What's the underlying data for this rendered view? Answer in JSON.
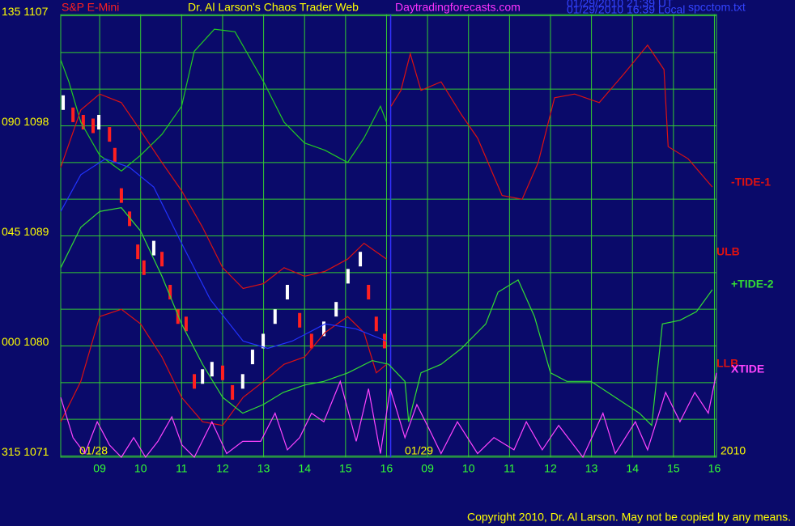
{
  "chart_data": {
    "type": "line",
    "title": "Dr. Al Larson's Chaos Trader Web",
    "subtitle": "S&P E-Mini",
    "site": "Daytradingforecasts.com",
    "timestamps": [
      "01/29/2010 21:39 UT",
      "01/29/2010 16:39 Local"
    ],
    "file": "spcctom.txt",
    "copyright": "Copyright 2010, Dr. Al Larson. May not be copied by any means.",
    "date_labels": [
      "01/28",
      "01/29",
      "2010"
    ],
    "xlim": [
      0.05,
      16.05
    ],
    "xticks": [
      {
        "value": 1,
        "label": "09"
      },
      {
        "value": 2,
        "label": "10"
      },
      {
        "value": 3,
        "label": "11"
      },
      {
        "value": 4,
        "label": "12"
      },
      {
        "value": 5,
        "label": "13"
      },
      {
        "value": 6,
        "label": "14"
      },
      {
        "value": 7,
        "label": "15"
      },
      {
        "value": 8,
        "label": "16"
      },
      {
        "value": 9,
        "label": "09"
      },
      {
        "value": 10,
        "label": "10"
      },
      {
        "value": 11,
        "label": "11"
      },
      {
        "value": 12,
        "label": "12"
      },
      {
        "value": 13,
        "label": "13"
      },
      {
        "value": 14,
        "label": "14"
      },
      {
        "value": 15,
        "label": "15"
      },
      {
        "value": 16,
        "label": "16"
      }
    ],
    "ylim": [
      1070.9,
      1107.1
    ],
    "yticks": [
      {
        "value": 1107,
        "label": "135 1107"
      },
      {
        "value": 1098,
        "label": "090 1098"
      },
      {
        "value": 1089,
        "label": "045 1089"
      },
      {
        "value": 1080,
        "label": "000 1080"
      },
      {
        "value": 1071,
        "label": "315 1071"
      }
    ],
    "ygrid": [
      1074,
      1077,
      1083,
      1086,
      1092,
      1095,
      1101,
      1104
    ],
    "grid": true,
    "grid_color": "#33cc33",
    "session_break": 8.1,
    "session_break_color": "#3333ff",
    "series": [
      {
        "style": "bars",
        "color": "#ffffff",
        "down_color": "#ff2020",
        "x": [
          0.11,
          0.35,
          0.6,
          0.84,
          0.98,
          1.24,
          1.37,
          1.53,
          1.73,
          1.93,
          2.08,
          2.32,
          2.52,
          2.72,
          2.91,
          3.11,
          3.31,
          3.51,
          3.74,
          4.0,
          4.24,
          4.49,
          4.73,
          4.99,
          5.28,
          5.58,
          5.88,
          6.17,
          6.47,
          6.77,
          7.06,
          7.36,
          7.56,
          7.75,
          7.95
        ],
        "values": [
          1099.9,
          1098.9,
          1098.3,
          1098.0,
          1098.3,
          1097.3,
          1095.6,
          1092.3,
          1090.4,
          1087.7,
          1086.4,
          1088.0,
          1087.1,
          1084.4,
          1082.4,
          1081.8,
          1077.1,
          1077.5,
          1078.1,
          1077.8,
          1076.2,
          1077.1,
          1079.1,
          1080.4,
          1082.4,
          1084.4,
          1082.1,
          1080.4,
          1081.4,
          1083.0,
          1085.7,
          1087.1,
          1084.4,
          1081.8,
          1080.4
        ]
      },
      {
        "color": "#22cc22",
        "x": [
          0.05,
          0.25,
          0.54,
          1.0,
          1.53,
          2.0,
          2.52,
          3.0,
          3.31,
          3.8,
          4.3,
          5.0,
          5.5,
          6.0,
          6.5,
          7.05,
          7.45,
          7.85,
          8.0
        ],
        "values": [
          1103.4,
          1101.6,
          1098.3,
          1095.6,
          1094.3,
          1095.6,
          1097.3,
          1099.6,
          1104.1,
          1105.9,
          1105.7,
          1101.6,
          1098.3,
          1096.6,
          1096.0,
          1095.0,
          1097.0,
          1099.6,
          1098.3
        ]
      },
      {
        "name": "ULB",
        "color": "#dd1111",
        "x": [
          0.05,
          0.54,
          1.0,
          1.53,
          2.0,
          2.52,
          3.0,
          3.51,
          4.0,
          4.5,
          5.0,
          5.5,
          6.0,
          6.5,
          7.05,
          7.45,
          8.0
        ],
        "values": [
          1094.6,
          1099.3,
          1100.6,
          1099.9,
          1097.6,
          1095.0,
          1092.7,
          1089.7,
          1086.4,
          1084.7,
          1085.1,
          1086.4,
          1085.7,
          1086.1,
          1087.1,
          1088.4,
          1087.1
        ]
      },
      {
        "name": "LLB",
        "color": "#dd1111",
        "x": [
          0.05,
          0.54,
          1.0,
          1.53,
          2.0,
          2.52,
          3.0,
          3.51,
          4.0,
          4.5,
          5.0,
          5.5,
          6.0,
          6.5,
          7.05,
          7.45,
          7.75,
          8.0
        ],
        "values": [
          1073.8,
          1077.1,
          1082.4,
          1083.0,
          1081.8,
          1079.1,
          1075.8,
          1073.8,
          1073.5,
          1075.8,
          1077.1,
          1078.5,
          1079.1,
          1081.1,
          1082.4,
          1081.1,
          1077.8,
          1078.5
        ]
      },
      {
        "color": "#2233ff",
        "x": [
          0.05,
          0.54,
          1.14,
          1.73,
          2.32,
          3.0,
          3.7,
          4.5,
          5.1,
          5.7,
          6.5,
          7.25,
          8.0
        ],
        "values": [
          1091.0,
          1094.0,
          1095.3,
          1094.6,
          1093.0,
          1088.4,
          1083.8,
          1080.4,
          1079.8,
          1080.4,
          1081.8,
          1081.4,
          1080.4
        ]
      },
      {
        "name": "-TIDE-1",
        "color": "#dd1111",
        "x": [
          8.11,
          8.35,
          8.58,
          8.84,
          9.33,
          9.83,
          10.22,
          10.82,
          11.31,
          11.7,
          12.1,
          12.59,
          13.19,
          13.78,
          14.37,
          14.77,
          14.87,
          15.36,
          15.95
        ],
        "values": [
          1099.6,
          1100.9,
          1103.9,
          1100.9,
          1101.6,
          1098.9,
          1097.0,
          1092.3,
          1092.0,
          1095.0,
          1100.3,
          1100.6,
          1099.9,
          1102.2,
          1104.6,
          1102.6,
          1096.3,
          1095.3,
          1093.0
        ]
      },
      {
        "name": "+TIDE-2",
        "color": "#33dd33",
        "x": [
          0.05,
          0.54,
          1.0,
          1.53,
          2.0,
          2.52,
          3.0,
          3.51,
          4.0,
          4.49,
          4.99,
          5.48,
          6.0,
          6.47,
          7.06,
          7.65,
          8.05,
          8.45,
          8.54,
          8.84,
          9.33,
          9.83,
          10.42,
          10.72,
          11.21,
          11.61,
          12.0,
          12.4,
          12.99,
          13.58,
          14.17,
          14.47,
          14.73,
          15.16,
          15.56,
          15.95
        ],
        "values": [
          1086.4,
          1089.7,
          1091.0,
          1091.3,
          1089.4,
          1085.7,
          1081.8,
          1078.5,
          1075.8,
          1074.5,
          1075.2,
          1076.2,
          1076.8,
          1077.1,
          1077.8,
          1078.8,
          1078.5,
          1077.1,
          1073.8,
          1077.8,
          1078.5,
          1079.8,
          1081.8,
          1084.4,
          1085.4,
          1082.4,
          1077.8,
          1077.1,
          1077.1,
          1075.8,
          1074.5,
          1073.5,
          1081.8,
          1082.1,
          1082.8,
          1084.6
        ]
      },
      {
        "name": "XTIDE",
        "color": "#ff44ff",
        "x": [
          0.05,
          0.35,
          0.64,
          0.94,
          1.24,
          1.53,
          1.83,
          2.12,
          2.42,
          2.76,
          3.01,
          3.31,
          3.74,
          4.1,
          4.49,
          4.93,
          5.28,
          5.58,
          5.88,
          6.17,
          6.47,
          6.87,
          7.26,
          7.56,
          7.85,
          8.09,
          8.45,
          8.74,
          9.04,
          9.33,
          9.73,
          10.22,
          10.62,
          11.11,
          11.41,
          11.8,
          12.2,
          12.79,
          13.28,
          13.58,
          14.07,
          14.37,
          14.81,
          15.16,
          15.52,
          15.85,
          16.05
        ],
        "values": [
          1075.8,
          1072.5,
          1071.2,
          1073.8,
          1071.9,
          1070.9,
          1072.5,
          1070.9,
          1072.2,
          1074.2,
          1071.9,
          1070.9,
          1073.8,
          1071.2,
          1072.2,
          1072.2,
          1074.5,
          1071.5,
          1072.5,
          1074.5,
          1073.8,
          1077.1,
          1072.2,
          1076.5,
          1071.2,
          1076.5,
          1072.5,
          1075.2,
          1073.2,
          1071.2,
          1073.8,
          1071.2,
          1072.5,
          1071.5,
          1073.8,
          1071.5,
          1073.5,
          1070.9,
          1074.5,
          1071.2,
          1073.8,
          1071.5,
          1076.2,
          1073.8,
          1076.2,
          1074.5,
          1077.8
        ]
      }
    ]
  }
}
